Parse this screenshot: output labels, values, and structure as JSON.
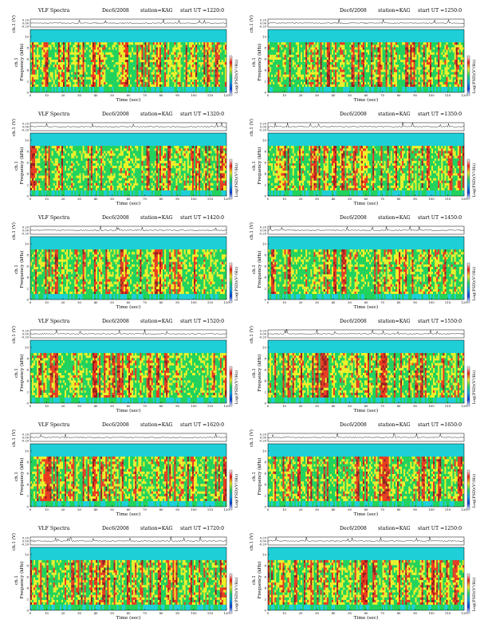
{
  "page": {
    "background": "#ffffff"
  },
  "common": {
    "xlabel": "Time (sec)",
    "chlabel": "ch.1 (V)",
    "ylabel_main": "Frequency (kHz)",
    "ylabel_side": "ch.1",
    "cbar_label": "Log(PSD)(V²/Hz)",
    "x_ticks": [
      "0",
      "10",
      "20",
      "30",
      "40",
      "50",
      "60",
      "70",
      "80",
      "90",
      "100",
      "110",
      "120"
    ],
    "f_ticks": [
      "0",
      "2",
      "4",
      "6",
      "8",
      "10"
    ],
    "v_ticks": [
      "0.20",
      "0.00",
      "-0.20"
    ]
  },
  "colors": {
    "spectrogram": [
      "#1ecfd8",
      "#22d35a",
      "#f0f027",
      "#ee3a1e",
      "#9b1c1c"
    ],
    "colorbar": [
      "#ffffff",
      "#0b3dd6",
      "#18a8e4",
      "#2ad06a",
      "#f4ea2c",
      "#ec1f1f",
      "#ffffff"
    ],
    "trace": "#222222"
  },
  "chart_data": [
    {
      "type": "heatmap",
      "title": "VLF Spectra",
      "date": "Dec6/2008",
      "station": "station=KAG",
      "ut": "start  UT  =1220:0",
      "xlim": [
        0,
        120
      ],
      "ylim": [
        0,
        10
      ],
      "seed": 11
    },
    {
      "type": "heatmap",
      "title": "",
      "date": "Dec6/2008",
      "station": "station=KAG",
      "ut": "start  UT  =1250:0",
      "xlim": [
        0,
        120
      ],
      "ylim": [
        0,
        10
      ],
      "seed": 23
    },
    {
      "type": "heatmap",
      "title": "VLF Spectra",
      "date": "Dec6/2008",
      "station": "station=KAG",
      "ut": "start  UT  =1320:0",
      "xlim": [
        0,
        120
      ],
      "ylim": [
        0,
        10
      ],
      "seed": 37
    },
    {
      "type": "heatmap",
      "title": "",
      "date": "Dec6/2008",
      "station": "station=KAG",
      "ut": "start  UT  =1350:0",
      "xlim": [
        0,
        120
      ],
      "ylim": [
        0,
        10
      ],
      "seed": 41
    },
    {
      "type": "heatmap",
      "title": "VLF Spectra",
      "date": "Dec6/2008",
      "station": "station=KAG",
      "ut": "start  UT  =1420:0",
      "xlim": [
        0,
        120
      ],
      "ylim": [
        0,
        10
      ],
      "seed": 53
    },
    {
      "type": "heatmap",
      "title": "",
      "date": "Dec6/2008",
      "station": "station=KAG",
      "ut": "start  UT  =1450:0",
      "xlim": [
        0,
        120
      ],
      "ylim": [
        0,
        10
      ],
      "seed": 67
    },
    {
      "type": "heatmap",
      "title": "VLF Spectra",
      "date": "Dec6/2008",
      "station": "station=KAG",
      "ut": "start  UT  =1520:0",
      "xlim": [
        0,
        120
      ],
      "ylim": [
        0,
        10
      ],
      "seed": 71
    },
    {
      "type": "heatmap",
      "title": "",
      "date": "Dec6/2008",
      "station": "station=KAG",
      "ut": "start  UT  =1550:0",
      "xlim": [
        0,
        120
      ],
      "ylim": [
        0,
        10
      ],
      "seed": 83
    },
    {
      "type": "heatmap",
      "title": "VLF Spectra",
      "date": "Dec6/2008",
      "station": "station=KAG",
      "ut": "start  UT  =1620:0",
      "xlim": [
        0,
        120
      ],
      "ylim": [
        0,
        10
      ],
      "seed": 97
    },
    {
      "type": "heatmap",
      "title": "",
      "date": "Dec6/2008",
      "station": "station=KAG",
      "ut": "start  UT  =1650:0",
      "xlim": [
        0,
        120
      ],
      "ylim": [
        0,
        10
      ],
      "seed": 101
    },
    {
      "type": "heatmap",
      "title": "VLF Spectra",
      "date": "Dec6/2008",
      "station": "station=KAG",
      "ut": "start  UT  =1720:0",
      "xlim": [
        0,
        120
      ],
      "ylim": [
        0,
        10
      ],
      "seed": 113
    },
    {
      "type": "heatmap",
      "title": "",
      "date": "Dec6/2008",
      "station": "station=KAG",
      "ut": "start  UT  =1250:0",
      "xlim": [
        0,
        120
      ],
      "ylim": [
        0,
        10
      ],
      "seed": 127
    }
  ]
}
